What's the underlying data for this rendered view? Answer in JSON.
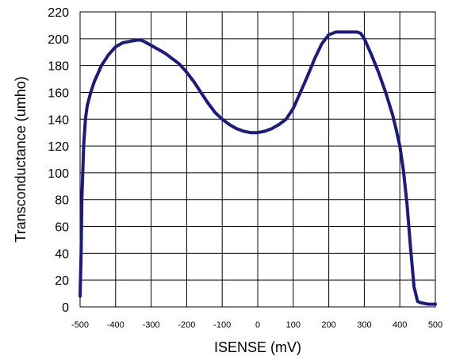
{
  "chart_data": {
    "type": "line",
    "title": "",
    "xlabel": "ISENSE (mV)",
    "ylabel": "Transconductance (umho)",
    "xlim": [
      -500,
      500
    ],
    "ylim": [
      0,
      220
    ],
    "x_ticks": [
      -500,
      -400,
      -300,
      -200,
      -100,
      0,
      100,
      200,
      300,
      400,
      500
    ],
    "x_tick_labels": [
      "-500",
      "-400",
      "-300",
      "-200",
      "-100",
      "0",
      "100",
      "200",
      "300",
      "400",
      "500"
    ],
    "y_ticks": [
      0,
      20,
      40,
      60,
      80,
      100,
      120,
      140,
      160,
      180,
      200,
      220
    ],
    "y_tick_labels": [
      "0",
      "20",
      "40",
      "60",
      "80",
      "100",
      "120",
      "140",
      "160",
      "180",
      "200",
      "220"
    ],
    "grid": true,
    "legend": "none",
    "colors": {
      "line": "#1a1a80",
      "grid": "#000000"
    },
    "series": [
      {
        "x": [
          -500,
          -497,
          -495,
          -490,
          -485,
          -480,
          -470,
          -460,
          -450,
          -440,
          -420,
          -400,
          -380,
          -360,
          -340,
          -330,
          -320,
          -300,
          -280,
          -260,
          -240,
          -220,
          -200,
          -180,
          -160,
          -140,
          -120,
          -100,
          -80,
          -60,
          -40,
          -20,
          0,
          20,
          40,
          60,
          80,
          100,
          120,
          140,
          160,
          180,
          200,
          210,
          220,
          240,
          260,
          280,
          290,
          300,
          320,
          340,
          360,
          380,
          390,
          400,
          410,
          420,
          430,
          440,
          450,
          460,
          480,
          500
        ],
        "y": [
          8,
          40,
          80,
          120,
          140,
          150,
          160,
          168,
          174,
          180,
          188,
          194,
          197,
          198,
          199,
          199,
          198,
          195,
          192,
          189,
          185,
          181,
          175,
          168,
          160,
          152,
          145,
          140,
          136,
          133,
          131,
          130,
          130,
          131,
          133,
          136,
          140,
          148,
          160,
          172,
          185,
          196,
          203,
          204,
          205,
          205,
          205,
          205,
          204,
          200,
          188,
          175,
          160,
          143,
          132,
          120,
          102,
          77,
          45,
          15,
          4,
          3,
          2,
          2
        ]
      }
    ]
  }
}
